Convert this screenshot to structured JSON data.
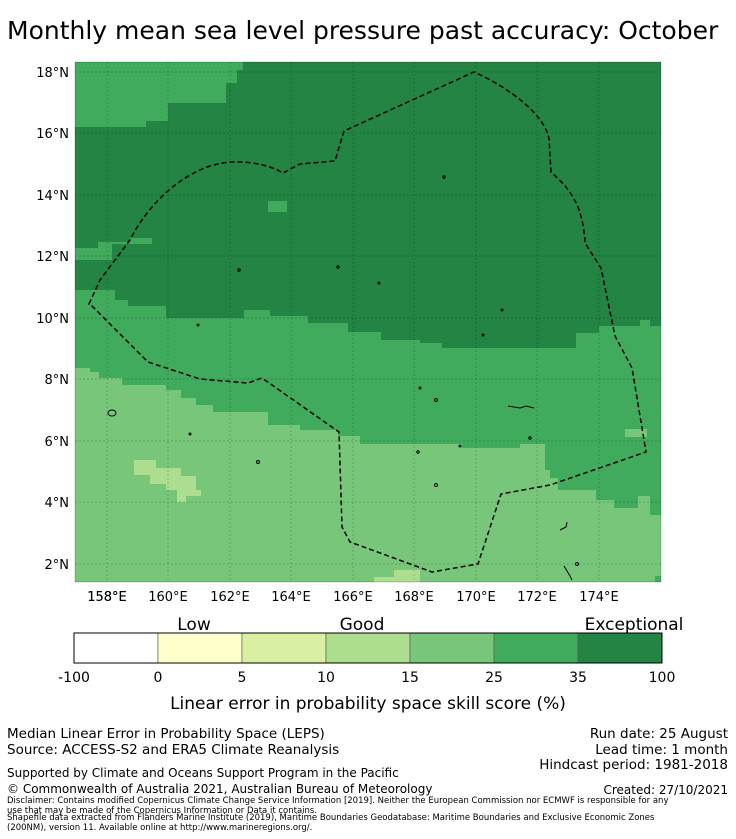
{
  "title": "Monthly mean sea level pressure past accuracy: October",
  "map": {
    "lat_ticks": [
      "18°N",
      "16°N",
      "14°N",
      "12°N",
      "10°N",
      "8°N",
      "6°N",
      "4°N",
      "2°N"
    ],
    "lon_ticks": [
      "158°E",
      "160°E",
      "162°E",
      "164°E",
      "166°E",
      "168°E",
      "170°E",
      "172°E",
      "174°E"
    ],
    "boundary_style": "dashed black",
    "gridlines": true
  },
  "colorbar": {
    "category_labels": [
      "Low",
      "Good",
      "Exceptional"
    ],
    "tick_labels": [
      "-100",
      "0",
      "5",
      "10",
      "15",
      "25",
      "35",
      "100"
    ],
    "colors": [
      "#ffffff",
      "#ffffcc",
      "#d9f0a3",
      "#addd8e",
      "#78c679",
      "#41ab5d",
      "#238443"
    ],
    "label": "Linear error in probability space skill score (%)"
  },
  "footer": {
    "line1": "Median Linear Error in Probability Space (LEPS)",
    "line2": "Source: ACCESS-S2 and ERA5 Climate Reanalysis",
    "run_date": "Run date: 25 August",
    "lead_time": "Lead time: 1 month",
    "hindcast": "Hindcast period: 1981-2018",
    "supported": "Supported by Climate and Oceans Support Program in the Pacific",
    "copyright": "© Commonwealth of Australia 2021, Australian Bureau of Meteorology",
    "created": "Created: 27/10/2021",
    "disclaimer1": "Disclaimer: Contains modified Copernicus Climate Change Service Information [2019]. Neither the European Commission nor ECMWF is responsible for any",
    "disclaimer2": "use that may be made of the Copernicus Information or Data it contains.",
    "disclaimer3": "Shapefile data extracted from Flanders Marine Institute (2019), Maritime Boundaries Geodatabase: Maritime Boundaries and Exclusive Economic Zones",
    "disclaimer4": "(200NM), version 11. Available online at http://www.marineregions.org/."
  }
}
